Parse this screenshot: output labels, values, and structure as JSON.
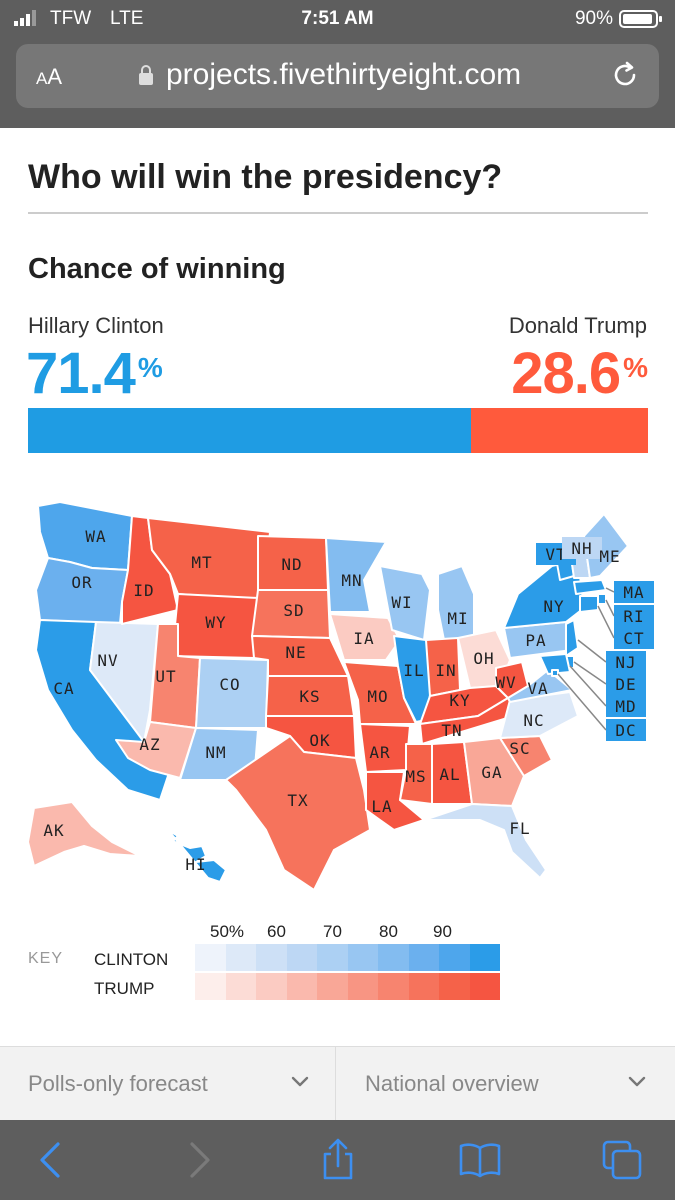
{
  "status_bar": {
    "carrier": "TFW",
    "network": "LTE",
    "time": "7:51 AM",
    "battery": "90%"
  },
  "browser": {
    "text_size_label": "AA",
    "url": "projects.fivethirtyeight.com"
  },
  "page": {
    "title": "Who will win the presidency?"
  },
  "chance": {
    "section_title": "Chance of winning",
    "clinton": {
      "name": "Hillary Clinton",
      "value": "71.4",
      "unit": "%",
      "fraction": 0.714,
      "color": "#1f9ce3"
    },
    "trump": {
      "name": "Donald Trump",
      "value": "28.6",
      "unit": "%",
      "fraction": 0.286,
      "color": "#ff5a3c"
    }
  },
  "map": {
    "states": [
      {
        "abbr": "WA",
        "winner": "clinton",
        "level": 8
      },
      {
        "abbr": "OR",
        "winner": "clinton",
        "level": 7
      },
      {
        "abbr": "CA",
        "winner": "clinton",
        "level": 9
      },
      {
        "abbr": "NV",
        "winner": "clinton",
        "level": 1
      },
      {
        "abbr": "ID",
        "winner": "trump",
        "level": 9
      },
      {
        "abbr": "MT",
        "winner": "trump",
        "level": 8
      },
      {
        "abbr": "WY",
        "winner": "trump",
        "level": 9
      },
      {
        "abbr": "UT",
        "winner": "trump",
        "level": 6
      },
      {
        "abbr": "AZ",
        "winner": "trump",
        "level": 3
      },
      {
        "abbr": "CO",
        "winner": "clinton",
        "level": 4
      },
      {
        "abbr": "NM",
        "winner": "clinton",
        "level": 5
      },
      {
        "abbr": "ND",
        "winner": "trump",
        "level": 8
      },
      {
        "abbr": "SD",
        "winner": "trump",
        "level": 7
      },
      {
        "abbr": "NE",
        "winner": "trump",
        "level": 8
      },
      {
        "abbr": "KS",
        "winner": "trump",
        "level": 8
      },
      {
        "abbr": "OK",
        "winner": "trump",
        "level": 9
      },
      {
        "abbr": "TX",
        "winner": "trump",
        "level": 7
      },
      {
        "abbr": "MN",
        "winner": "clinton",
        "level": 6
      },
      {
        "abbr": "IA",
        "winner": "trump",
        "level": 2
      },
      {
        "abbr": "MO",
        "winner": "trump",
        "level": 8
      },
      {
        "abbr": "AR",
        "winner": "trump",
        "level": 9
      },
      {
        "abbr": "LA",
        "winner": "trump",
        "level": 9
      },
      {
        "abbr": "WI",
        "winner": "clinton",
        "level": 5
      },
      {
        "abbr": "IL",
        "winner": "clinton",
        "level": 9
      },
      {
        "abbr": "MI",
        "winner": "clinton",
        "level": 5
      },
      {
        "abbr": "IN",
        "winner": "trump",
        "level": 8
      },
      {
        "abbr": "OH",
        "winner": "trump",
        "level": 1
      },
      {
        "abbr": "KY",
        "winner": "trump",
        "level": 9
      },
      {
        "abbr": "TN",
        "winner": "trump",
        "level": 9
      },
      {
        "abbr": "MS",
        "winner": "trump",
        "level": 8
      },
      {
        "abbr": "AL",
        "winner": "trump",
        "level": 9
      },
      {
        "abbr": "GA",
        "winner": "trump",
        "level": 4
      },
      {
        "abbr": "SC",
        "winner": "trump",
        "level": 6
      },
      {
        "abbr": "NC",
        "winner": "clinton",
        "level": 1
      },
      {
        "abbr": "FL",
        "winner": "clinton",
        "level": 2
      },
      {
        "abbr": "WV",
        "winner": "trump",
        "level": 9
      },
      {
        "abbr": "VA",
        "winner": "clinton",
        "level": 5
      },
      {
        "abbr": "PA",
        "winner": "clinton",
        "level": 5
      },
      {
        "abbr": "NY",
        "winner": "clinton",
        "level": 9
      },
      {
        "abbr": "VT",
        "winner": "clinton",
        "level": 9
      },
      {
        "abbr": "NH",
        "winner": "clinton",
        "level": 3
      },
      {
        "abbr": "ME",
        "winner": "clinton",
        "level": 5
      },
      {
        "abbr": "MA",
        "winner": "clinton",
        "level": 9
      },
      {
        "abbr": "RI",
        "winner": "clinton",
        "level": 9
      },
      {
        "abbr": "CT",
        "winner": "clinton",
        "level": 9
      },
      {
        "abbr": "NJ",
        "winner": "clinton",
        "level": 9
      },
      {
        "abbr": "DE",
        "winner": "clinton",
        "level": 9
      },
      {
        "abbr": "MD",
        "winner": "clinton",
        "level": 9
      },
      {
        "abbr": "DC",
        "winner": "clinton",
        "level": 9
      },
      {
        "abbr": "AK",
        "winner": "trump",
        "level": 3
      },
      {
        "abbr": "HI",
        "winner": "clinton",
        "level": 9
      }
    ]
  },
  "key": {
    "label": "KEY",
    "ticks": [
      "50%",
      "60",
      "70",
      "80",
      "90"
    ],
    "clinton_label": "CLINTON",
    "trump_label": "TRUMP",
    "clinton_colors": [
      "#eef3fb",
      "#dde9f8",
      "#cde0f6",
      "#bdd7f4",
      "#acd0f3",
      "#98c6f2",
      "#83bcf0",
      "#6bb0ee",
      "#4ea6ec",
      "#2b9ce8"
    ],
    "trump_colors": [
      "#fdeeeb",
      "#fcdcd6",
      "#fbcbc2",
      "#fab9ad",
      "#f9a797",
      "#f89583",
      "#f7846f",
      "#f6735c",
      "#f56249",
      "#f55541"
    ]
  },
  "selectors": {
    "left": "Polls-only forecast",
    "right": "National overview"
  },
  "toolbar": {
    "icons": [
      "back-icon",
      "forward-icon",
      "share-icon",
      "bookmarks-icon",
      "tabs-icon"
    ]
  }
}
